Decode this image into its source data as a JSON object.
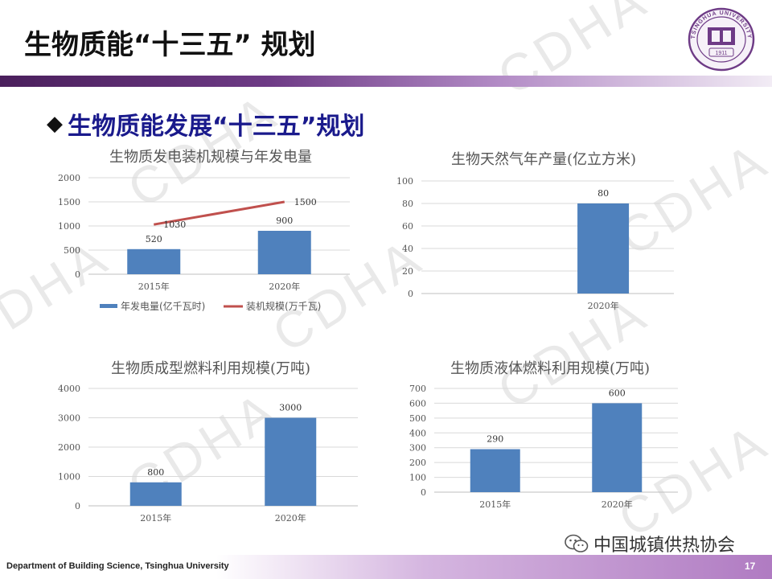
{
  "slide": {
    "title": "生物质能“十三五” 规划",
    "section_heading": "生物质能发展“十三五”规划",
    "footer": "Department of Building  Science, Tsinghua  University",
    "page_number": "17",
    "wechat_account": "中国城镇供热协会",
    "watermark": "CDHA"
  },
  "logo": {
    "text": "TSINGHUA UNIVERSITY",
    "year": "1911"
  },
  "colors": {
    "bar": "#4f81bd",
    "line": "#c0504d",
    "title_bar": "#6e3b86",
    "heading": "#1a1a8c"
  },
  "chart_data": [
    {
      "type": "bar",
      "title": "生物质发电装机规模与年发电量",
      "categories": [
        "2015年",
        "2020年"
      ],
      "series": [
        {
          "name": "年发电量(亿千瓦时)",
          "type": "bar",
          "values": [
            520,
            900
          ]
        },
        {
          "name": "装机规模(万千瓦)",
          "type": "line",
          "values": [
            1030,
            1500
          ]
        }
      ],
      "yticks": [
        0,
        500,
        1000,
        1500,
        2000
      ],
      "ylim": [
        0,
        2000
      ],
      "legend": "bottom",
      "grid": true
    },
    {
      "type": "bar",
      "title": "生物天然气年产量(亿立方米)",
      "categories": [
        "2020年"
      ],
      "series": [
        {
          "values": [
            80
          ]
        }
      ],
      "yticks": [
        0,
        20,
        40,
        60,
        80,
        100
      ],
      "ylim": [
        0,
        100
      ],
      "grid": true
    },
    {
      "type": "bar",
      "title": "生物质成型燃料利用规模(万吨)",
      "categories": [
        "2015年",
        "2020年"
      ],
      "series": [
        {
          "values": [
            800,
            3000
          ]
        }
      ],
      "yticks": [
        0,
        1000,
        2000,
        3000,
        4000
      ],
      "ylim": [
        0,
        4000
      ],
      "grid": true
    },
    {
      "type": "bar",
      "title": "生物质液体燃料利用规模(万吨)",
      "categories": [
        "2015年",
        "2020年"
      ],
      "series": [
        {
          "values": [
            290,
            600
          ]
        }
      ],
      "yticks": [
        0,
        100,
        200,
        300,
        400,
        500,
        600,
        700
      ],
      "ylim": [
        0,
        700
      ],
      "grid": true
    }
  ]
}
